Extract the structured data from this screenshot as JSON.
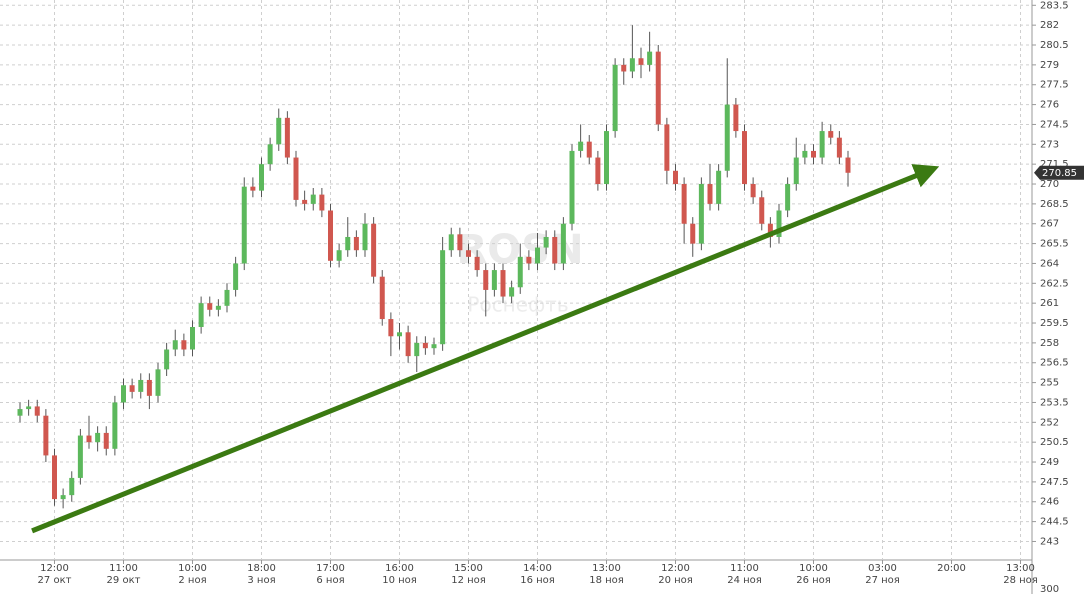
{
  "chart_data": {
    "type": "candlestick",
    "watermark": "ROSN",
    "watermark_subtitle": "Роснефть",
    "up_color": "#5cb85c",
    "down_color": "#d0574f",
    "grid": true,
    "ylim": [
      241.6,
      283.9
    ],
    "yticks": [
      243,
      244.5,
      246,
      247.5,
      249,
      250.5,
      252,
      253.5,
      255,
      256.5,
      258,
      259.5,
      261,
      262.5,
      264,
      265.5,
      267,
      268.5,
      270,
      271.5,
      273,
      274.5,
      276,
      277.5,
      279,
      280.5,
      282,
      283.5
    ],
    "volume_ticks": [
      300
    ],
    "categories": [
      null,
      null,
      null,
      null,
      "12:00",
      null,
      null,
      null,
      null,
      null,
      null,
      null,
      "11:00",
      null,
      null,
      null,
      null,
      null,
      null,
      null,
      "10:00",
      null,
      null,
      null,
      null,
      null,
      null,
      null,
      "18:00",
      null,
      null,
      null,
      null,
      null,
      null,
      null,
      "17:00",
      null,
      null,
      null,
      null,
      null,
      null,
      null,
      "16:00",
      null,
      null,
      null,
      null,
      null,
      null,
      null,
      "15:00",
      null,
      null,
      null,
      null,
      null,
      null,
      null,
      "14:00",
      null,
      null,
      null,
      null,
      null,
      null,
      null,
      "13:00",
      null,
      null,
      null,
      null,
      null,
      null,
      null,
      "12:00",
      null,
      null,
      null,
      null,
      null,
      null,
      null,
      "11:00",
      null,
      null,
      null,
      null,
      null,
      null,
      null,
      "10:00",
      null,
      null,
      null,
      null,
      null,
      null,
      null,
      "03:00",
      null,
      null,
      null,
      null,
      null,
      null,
      null,
      "20:00",
      null,
      null,
      null,
      null,
      null,
      null,
      null,
      "13:00"
    ],
    "category_dates": [
      null,
      null,
      null,
      null,
      "27 окт",
      null,
      null,
      null,
      null,
      null,
      null,
      null,
      "29 окт",
      null,
      null,
      null,
      null,
      null,
      null,
      null,
      "2 ноя",
      null,
      null,
      null,
      null,
      null,
      null,
      null,
      "3 ноя",
      null,
      null,
      null,
      null,
      null,
      null,
      null,
      "6 ноя",
      null,
      null,
      null,
      null,
      null,
      null,
      null,
      "10 ноя",
      null,
      null,
      null,
      null,
      null,
      null,
      null,
      "12 ноя",
      null,
      null,
      null,
      null,
      null,
      null,
      null,
      "16 ноя",
      null,
      null,
      null,
      null,
      null,
      null,
      null,
      "18 ноя",
      null,
      null,
      null,
      null,
      null,
      null,
      null,
      "20 ноя",
      null,
      null,
      null,
      null,
      null,
      null,
      null,
      "24 ноя",
      null,
      null,
      null,
      null,
      null,
      null,
      null,
      "26 ноя",
      null,
      null,
      null,
      null,
      null,
      null,
      null,
      "27 ноя",
      null,
      null,
      null,
      null,
      null,
      null,
      null,
      null,
      null,
      null,
      null,
      null,
      null,
      null,
      null,
      "28 ноя"
    ],
    "open": [
      252.5,
      253,
      253.2,
      252.5,
      249.5,
      246.2,
      246.5,
      247.8,
      251,
      250.5,
      251.2,
      250,
      253.5,
      254.8,
      254.3,
      255.2,
      254,
      256,
      257.5,
      258.2,
      257.5,
      259.2,
      261,
      260.5,
      260.8,
      262,
      264,
      269.8,
      269.5,
      271.5,
      273,
      275,
      272,
      268.8,
      268.5,
      269.2,
      268,
      264.2,
      265,
      266,
      265,
      267,
      263,
      259.8,
      258.5,
      258.8,
      257,
      258,
      257.6,
      257.9,
      265,
      266.2,
      265,
      264.5,
      263.5,
      262,
      263.5,
      261.5,
      262.2,
      264.5,
      264,
      265.2,
      266,
      264,
      267,
      272.5,
      273.2,
      272,
      270,
      274,
      279,
      278.5,
      279.5,
      279,
      280,
      274.5,
      271,
      270,
      267,
      265.5,
      270,
      268.5,
      271,
      276,
      274,
      270,
      269,
      267,
      266,
      268,
      270,
      272,
      272.5,
      272,
      274,
      273.5,
      272,
      null,
      null,
      null,
      null,
      null,
      null,
      null,
      null,
      null,
      null,
      null,
      null,
      null,
      null,
      null,
      null,
      null,
      null,
      null,
      null
    ],
    "high": [
      253.5,
      253.7,
      253.7,
      253,
      250,
      247,
      248.3,
      251.5,
      252.5,
      251.7,
      251.7,
      254,
      255.3,
      255.3,
      255.7,
      255.7,
      256.5,
      258,
      259,
      258.7,
      259.7,
      261.5,
      261.5,
      261.3,
      262.5,
      264.5,
      270.5,
      270.5,
      272,
      273.5,
      275.7,
      275.5,
      272.5,
      269.5,
      269.7,
      269.7,
      268.5,
      265.5,
      267.5,
      266.5,
      267.8,
      267.5,
      263.5,
      260.3,
      259.5,
      259.3,
      258.5,
      258.5,
      258.4,
      266,
      266.7,
      266.7,
      265.5,
      265,
      264,
      264,
      264,
      262.7,
      265.5,
      265,
      266.3,
      266.5,
      266.5,
      267.5,
      273,
      274.5,
      273.7,
      272.5,
      274.5,
      279.5,
      279.5,
      282,
      280.3,
      281.5,
      280.5,
      275,
      271.5,
      270.5,
      267.5,
      270.5,
      271.5,
      271.5,
      279.5,
      276.5,
      274.5,
      270.5,
      269.5,
      267.5,
      268.5,
      270.5,
      273.5,
      273,
      273,
      274.7,
      274.5,
      274,
      272.5,
      null,
      null,
      null,
      null,
      null,
      null,
      null,
      null,
      null,
      null,
      null,
      null,
      null,
      null,
      null,
      null,
      null,
      null,
      null,
      null
    ],
    "low": [
      252,
      252.5,
      252,
      249,
      245.7,
      245.5,
      246,
      247.3,
      250,
      249.8,
      249.5,
      249.5,
      253,
      253.8,
      253.8,
      253,
      253.5,
      255.5,
      257,
      257,
      257,
      258.7,
      260,
      260,
      260.3,
      261.5,
      263.5,
      269,
      269,
      271,
      272.5,
      271.5,
      268.3,
      268,
      268,
      267.5,
      263.7,
      263.7,
      264.5,
      264.5,
      264.5,
      262.5,
      259.3,
      257,
      257.5,
      256.5,
      255.8,
      257.1,
      257.1,
      257.4,
      264.5,
      264.5,
      264,
      263,
      260,
      261.5,
      261,
      261,
      261.7,
      263.5,
      263.5,
      264.7,
      263.5,
      263.5,
      266.5,
      272,
      271.5,
      269.5,
      269.5,
      273.5,
      277.5,
      278,
      278,
      278.5,
      274,
      270,
      269.5,
      265.5,
      264.5,
      265,
      268,
      268,
      270.5,
      273.5,
      269.5,
      268.5,
      266.5,
      265.2,
      265.5,
      267.5,
      269.5,
      271.5,
      271.5,
      271.5,
      273,
      271.5,
      269.8,
      null,
      null,
      null,
      null,
      null,
      null,
      null,
      null,
      null,
      null,
      null,
      null,
      null,
      null,
      null,
      null,
      null,
      null,
      null,
      null
    ],
    "close": [
      253,
      253.2,
      252.5,
      249.5,
      246.2,
      246.5,
      247.8,
      251,
      250.5,
      251.2,
      250,
      253.5,
      254.8,
      254.3,
      255.2,
      254,
      256,
      257.5,
      258.2,
      257.5,
      259.2,
      261,
      260.5,
      260.8,
      262,
      264,
      269.8,
      269.5,
      271.5,
      273,
      275,
      272,
      268.8,
      268.5,
      269.2,
      268,
      264.2,
      265,
      266,
      265,
      267,
      263,
      259.8,
      258.5,
      258.8,
      257,
      258,
      257.6,
      257.9,
      265,
      266.2,
      265,
      264.5,
      263.5,
      262,
      263.5,
      261.5,
      262.2,
      264.5,
      264,
      265.2,
      266,
      264,
      267,
      272.5,
      273.2,
      272,
      270,
      274,
      279,
      278.5,
      279.5,
      279,
      280,
      274.5,
      271,
      270,
      267,
      265.5,
      270,
      268.5,
      271,
      276,
      274,
      270,
      269,
      267,
      266,
      268,
      270,
      272,
      272.5,
      272,
      274,
      273.5,
      272,
      270.85,
      null,
      null,
      null,
      null,
      null,
      null,
      null,
      null,
      null,
      null,
      null,
      null,
      null,
      null,
      null,
      null,
      null,
      null,
      null,
      null
    ],
    "trendline": {
      "x": [
        1.4,
        105.5
      ],
      "y": [
        243.8,
        271.05
      ],
      "color": "#3b7a12"
    }
  }
}
